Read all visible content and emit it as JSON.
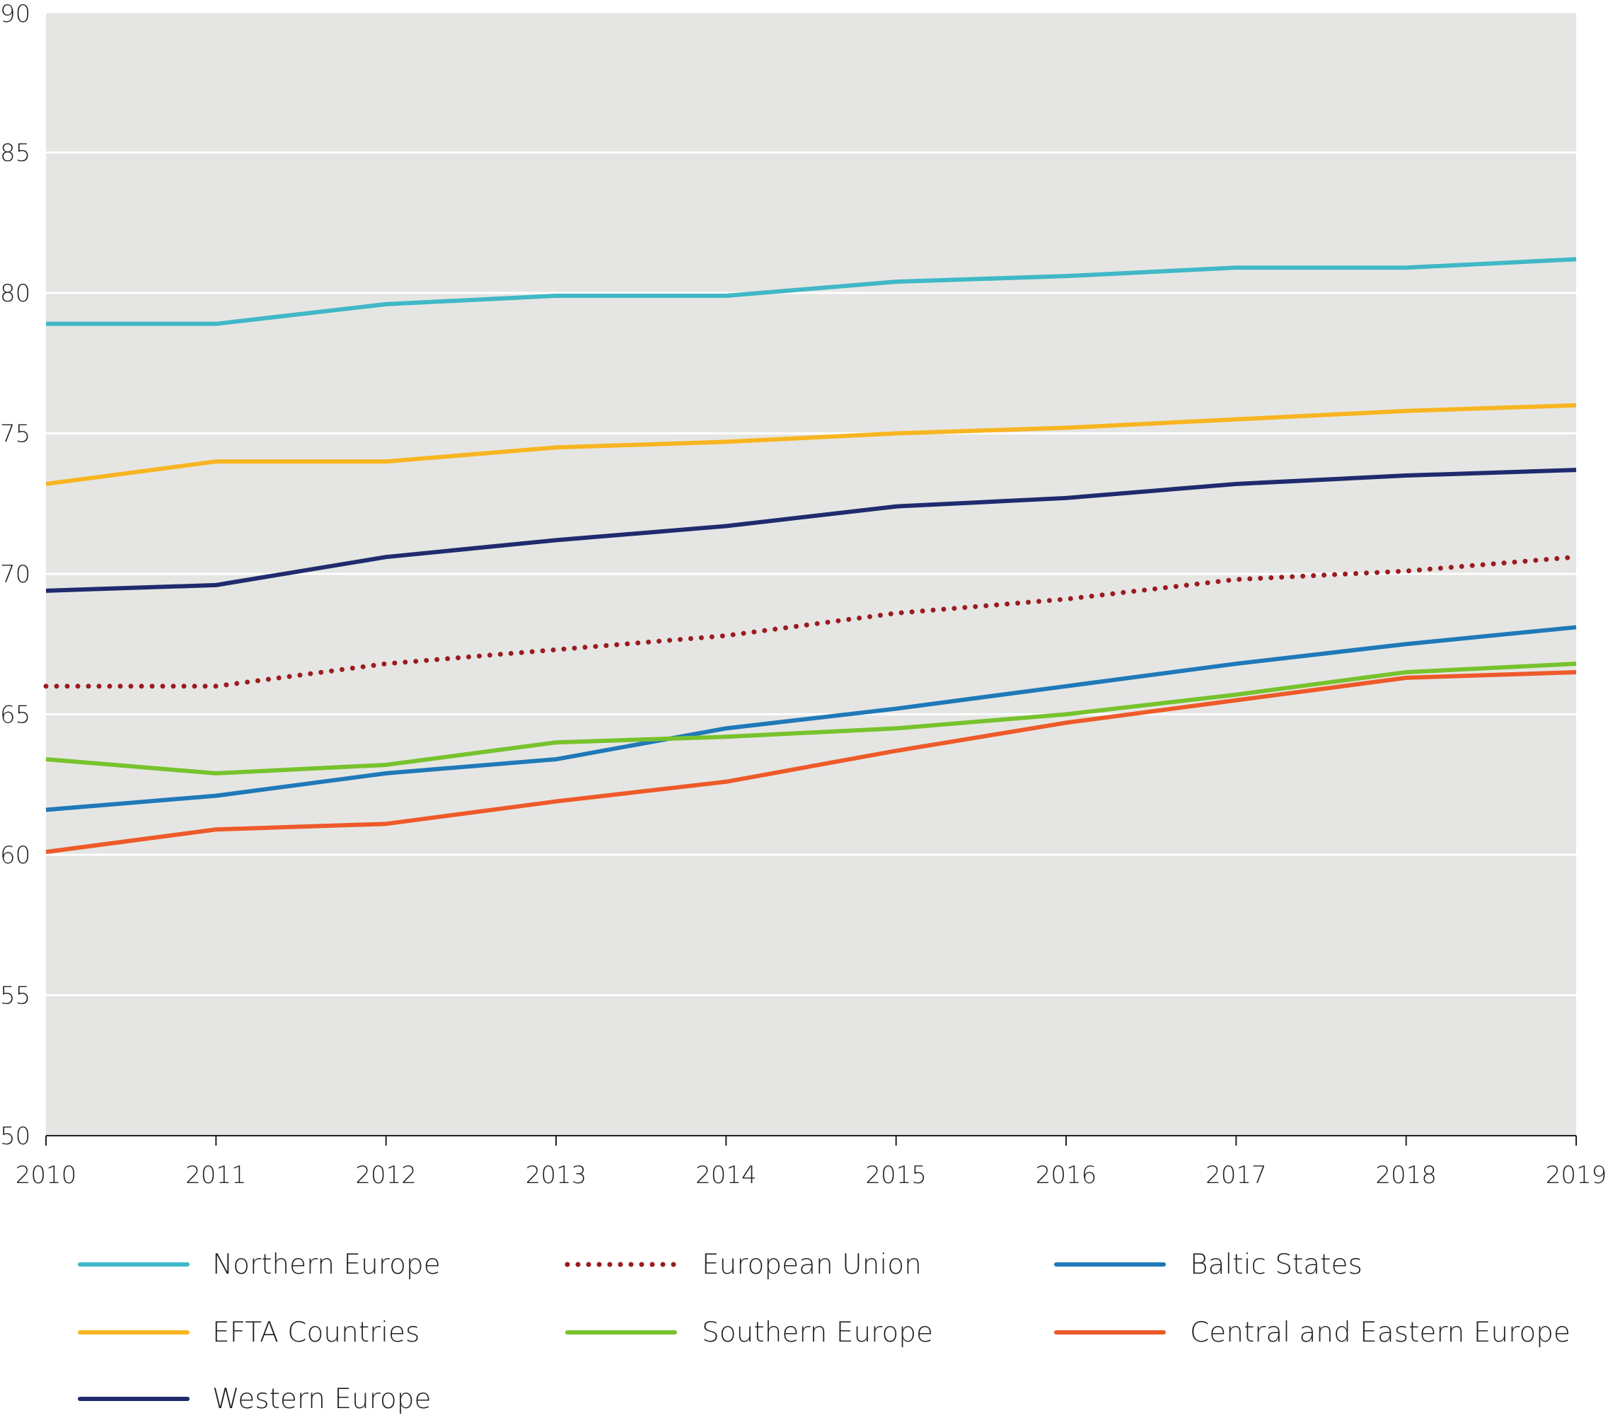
{
  "chart_data": {
    "type": "line",
    "title": "",
    "xlabel": "",
    "ylabel": "",
    "x": [
      2010,
      2011,
      2012,
      2013,
      2014,
      2015,
      2016,
      2017,
      2018,
      2019
    ],
    "ylim": [
      50,
      90
    ],
    "yticks": [
      50,
      55,
      60,
      65,
      70,
      75,
      80,
      85,
      90
    ],
    "grid": true,
    "legend_placement": "bottom",
    "series": [
      {
        "name": "Northern Europe",
        "color": "#40b8c7",
        "style": "solid",
        "values": [
          78.9,
          78.9,
          79.6,
          79.9,
          79.9,
          80.4,
          80.6,
          80.9,
          80.9,
          81.2
        ]
      },
      {
        "name": "European Union",
        "color": "#9b1b20",
        "style": "dotted",
        "values": [
          66.0,
          66.0,
          66.8,
          67.3,
          67.8,
          68.6,
          69.1,
          69.8,
          70.1,
          70.6
        ]
      },
      {
        "name": "Baltic States",
        "color": "#1f79b9",
        "style": "solid",
        "values": [
          61.6,
          62.1,
          62.9,
          63.4,
          64.5,
          65.2,
          66.0,
          66.8,
          67.5,
          68.1
        ]
      },
      {
        "name": "EFTA Countries",
        "color": "#f8b521",
        "style": "solid",
        "values": [
          73.2,
          74.0,
          74.0,
          74.5,
          74.7,
          75.0,
          75.2,
          75.5,
          75.8,
          76.0
        ]
      },
      {
        "name": "Southern Europe",
        "color": "#77c22d",
        "style": "solid",
        "values": [
          63.4,
          62.9,
          63.2,
          64.0,
          64.2,
          64.5,
          65.0,
          65.7,
          66.5,
          66.8
        ]
      },
      {
        "name": "Central and Eastern Europe",
        "color": "#ee5a29",
        "style": "solid",
        "values": [
          60.1,
          60.9,
          61.1,
          61.9,
          62.6,
          63.7,
          64.7,
          65.5,
          66.3,
          66.5
        ]
      },
      {
        "name": "Western Europe",
        "color": "#1f2b6e",
        "style": "solid",
        "values": [
          69.4,
          69.6,
          70.6,
          71.2,
          71.7,
          72.4,
          72.7,
          73.2,
          73.5,
          73.7
        ]
      }
    ],
    "plot_background": "#e5e6e3"
  }
}
